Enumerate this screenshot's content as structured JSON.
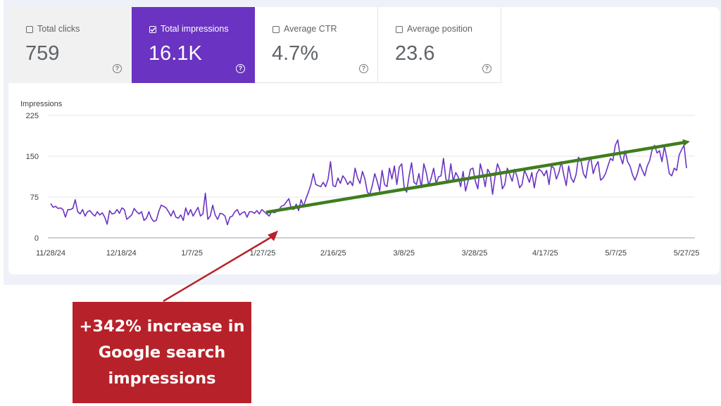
{
  "metrics": [
    {
      "label": "Total clicks",
      "value": "759",
      "checked": false,
      "help": "?"
    },
    {
      "label": "Total impressions",
      "value": "16.1K",
      "checked": true,
      "help": "?"
    },
    {
      "label": "Average CTR",
      "value": "4.7%",
      "checked": false,
      "help": "?"
    },
    {
      "label": "Average position",
      "value": "23.6",
      "checked": false,
      "help": "?"
    }
  ],
  "colors": {
    "selected_tile": "#6a33c2",
    "series_line": "#6a33c2",
    "trend_arrow": "#3f7d1f",
    "annotation_arrow": "#b7222a",
    "callout_bg": "#b7222a"
  },
  "callout": {
    "text": "+342% increase in Google search impressions"
  },
  "chart_data": {
    "type": "line",
    "ylabel": "Impressions",
    "ylim": [
      0,
      225
    ],
    "yticks": [
      "0",
      "75",
      "150",
      "225"
    ],
    "ytick_values": [
      0,
      75,
      150,
      225
    ],
    "xticks": [
      "11/28/24",
      "12/18/24",
      "1/7/25",
      "1/27/25",
      "2/16/25",
      "3/8/25",
      "3/28/25",
      "4/17/25",
      "5/7/25",
      "5/27/25"
    ],
    "x_start_label": "11/28/24",
    "x_end_label": "5/27/25",
    "grid": true,
    "series": [
      {
        "values": [
          63,
          56,
          58,
          54,
          55,
          52,
          38,
          52,
          52,
          54,
          70,
          48,
          44,
          52,
          40,
          48,
          50,
          44,
          40,
          48,
          42,
          46,
          38,
          25,
          50,
          44,
          45,
          52,
          45,
          55,
          52,
          34,
          38,
          42,
          54,
          48,
          44,
          48,
          32,
          36,
          48,
          36,
          30,
          32,
          48,
          60,
          58,
          55,
          48,
          40,
          50,
          38,
          36,
          42,
          32,
          55,
          42,
          52,
          40,
          48,
          56,
          40,
          44,
          82,
          34,
          40,
          60,
          42,
          34,
          45,
          44,
          40,
          24,
          38,
          40,
          48,
          52,
          42,
          46,
          48,
          38,
          48,
          48,
          45,
          50,
          44,
          52,
          48,
          44,
          40,
          48,
          46,
          48,
          52,
          58,
          60,
          66,
          72,
          54,
          52,
          62,
          50,
          70,
          58,
          72,
          84,
          98,
          118,
          98,
          96,
          94,
          102,
          94,
          108,
          140,
          96,
          94,
          110,
          100,
          114,
          108,
          98,
          104,
          96,
          128,
          110,
          100,
          122,
          108,
          84,
          80,
          96,
          118,
          104,
          86,
          124,
          98,
          94,
          128,
          108,
          132,
          98,
          130,
          136,
          92,
          84,
          114,
          138,
          102,
          98,
          118,
          92,
          136,
          120,
          96,
          110,
          128,
          100,
          112,
          114,
          146,
          108,
          102,
          136,
          104,
          120,
          112,
          94,
          122,
          86,
          104,
          126,
          128,
          104,
          90,
          136,
          118,
          94,
          126,
          118,
          80,
          112,
          136,
          124,
          90,
          98,
          128,
          116,
          104,
          126,
          112,
          92,
          98,
          124,
          114,
          102,
          120,
          92,
          118,
          126,
          122,
          114,
          124,
          98,
          132,
          128,
          108,
          120,
          140,
          116,
          96,
          132,
          110,
          102,
          116,
          148,
          142,
          118,
          110,
          138,
          148,
          118,
          132,
          140,
          106,
          110,
          118,
          132,
          146,
          142,
          170,
          180,
          150,
          136,
          160,
          140,
          132,
          116,
          106,
          118,
          136,
          124,
          114,
          132,
          142,
          162,
          170,
          156,
          160,
          140,
          168,
          146,
          118,
          114,
          128,
          124,
          152,
          162,
          170,
          128
        ]
      }
    ],
    "annotations": {
      "trend_arrow": {
        "from": {
          "x_label": "1/27/25",
          "y": 47
        },
        "to": {
          "x_label": "5/27/25",
          "y": 176
        }
      },
      "pointer_arrow": {
        "points_to": {
          "x_label": "1/27/25",
          "y": 25
        }
      }
    }
  }
}
